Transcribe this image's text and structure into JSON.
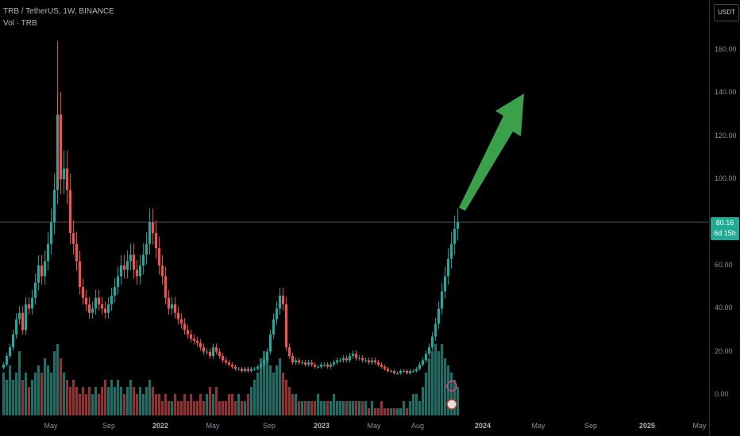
{
  "header": {
    "symbol_line": "TRB / TetherUS, 1W, BINANCE",
    "volume_line": "Vol · TRB"
  },
  "price_axis": {
    "currency": "USDT",
    "ticks": [
      "160.00",
      "140.00",
      "120.00",
      "100.00",
      "80.00",
      "60.00",
      "40.00",
      "20.00",
      "0.00"
    ],
    "last_price": "80.16",
    "countdown": "6d 15h"
  },
  "time_axis": {
    "ticks": [
      {
        "label": "May",
        "bold": false
      },
      {
        "label": "Sep",
        "bold": false
      },
      {
        "label": "2022",
        "bold": true
      },
      {
        "label": "May",
        "bold": false
      },
      {
        "label": "Sep",
        "bold": false
      },
      {
        "label": "2023",
        "bold": true
      },
      {
        "label": "May",
        "bold": false
      },
      {
        "label": "Aug",
        "bold": false
      },
      {
        "label": "2024",
        "bold": true
      },
      {
        "label": "May",
        "bold": false
      },
      {
        "label": "Sep",
        "bold": false
      },
      {
        "label": "2025",
        "bold": true
      },
      {
        "label": "May",
        "bold": false
      }
    ]
  },
  "colors": {
    "up": "#26a69a",
    "down": "#ef5350",
    "vol_up": "#1f6f66",
    "vol_down": "#8e3435",
    "arrow": "#3aa04a",
    "background": "#000000"
  },
  "chart_data": {
    "type": "candlestick",
    "title": "TRB / TetherUS, 1W, BINANCE",
    "ylim": [
      0,
      170
    ],
    "y_ticks": [
      0,
      20,
      40,
      60,
      80,
      100,
      120,
      140,
      160
    ],
    "last_price": 80.16,
    "horizontal_line": 80.16,
    "grid": false,
    "annotation": "green arrow pointing up-right from ~80 toward ~140",
    "weekly_close": [
      14,
      18,
      22,
      28,
      35,
      38,
      30,
      42,
      40,
      45,
      52,
      60,
      55,
      62,
      70,
      80,
      95,
      130,
      100,
      105,
      95,
      75,
      70,
      62,
      50,
      45,
      42,
      38,
      40,
      45,
      42,
      40,
      38,
      42,
      46,
      50,
      55,
      60,
      58,
      62,
      65,
      58,
      55,
      60,
      65,
      70,
      80,
      75,
      68,
      60,
      55,
      45,
      40,
      42,
      38,
      35,
      33,
      30,
      28,
      26,
      25,
      24,
      22,
      20,
      20,
      18,
      22,
      20,
      18,
      16,
      15,
      14,
      13,
      12,
      12,
      11,
      12,
      11,
      12,
      12,
      13,
      14,
      16,
      20,
      28,
      35,
      40,
      46,
      42,
      22,
      18,
      15,
      16,
      15,
      15,
      14,
      15,
      14,
      13,
      13,
      14,
      14,
      13,
      14,
      15,
      16,
      16,
      17,
      16,
      18,
      19,
      17,
      17,
      16,
      16,
      15,
      16,
      15,
      14,
      13,
      12,
      11,
      11,
      10,
      10,
      11,
      11,
      10,
      11,
      11,
      12,
      14,
      16,
      19,
      22,
      27,
      33,
      40,
      48,
      55,
      63,
      70,
      77,
      80
    ],
    "weekly_volume_relative": [
      0.6,
      0.5,
      0.7,
      0.5,
      0.6,
      0.9,
      0.5,
      0.6,
      0.4,
      0.5,
      0.6,
      0.7,
      0.6,
      0.8,
      0.7,
      0.6,
      0.9,
      1.0,
      0.8,
      0.6,
      0.5,
      0.4,
      0.5,
      0.4,
      0.3,
      0.4,
      0.3,
      0.4,
      0.3,
      0.4,
      0.3,
      0.4,
      0.5,
      0.4,
      0.5,
      0.4,
      0.5,
      0.4,
      0.3,
      0.4,
      0.5,
      0.4,
      0.3,
      0.4,
      0.3,
      0.4,
      0.5,
      0.4,
      0.3,
      0.3,
      0.2,
      0.3,
      0.2,
      0.2,
      0.3,
      0.2,
      0.2,
      0.3,
      0.2,
      0.3,
      0.2,
      0.2,
      0.3,
      0.2,
      0.3,
      0.4,
      0.3,
      0.4,
      0.2,
      0.2,
      0.2,
      0.3,
      0.3,
      0.2,
      0.3,
      0.2,
      0.2,
      0.3,
      0.4,
      0.5,
      0.6,
      0.8,
      0.9,
      0.8,
      0.7,
      0.6,
      0.7,
      0.8,
      0.6,
      0.5,
      0.4,
      0.3,
      0.3,
      0.2,
      0.2,
      0.2,
      0.2,
      0.2,
      0.2,
      0.3,
      0.2,
      0.2,
      0.2,
      0.2,
      0.3,
      0.2,
      0.2,
      0.2,
      0.2,
      0.2,
      0.2,
      0.2,
      0.2,
      0.2,
      0.2,
      0.1,
      0.2,
      0.1,
      0.1,
      0.2,
      0.1,
      0.1,
      0.1,
      0.1,
      0.1,
      0.1,
      0.2,
      0.1,
      0.2,
      0.3,
      0.3,
      0.2,
      0.4,
      0.6,
      0.8,
      0.9,
      1.0,
      0.9,
      1.0,
      0.8,
      0.7,
      0.6,
      0.5,
      0.4
    ]
  }
}
